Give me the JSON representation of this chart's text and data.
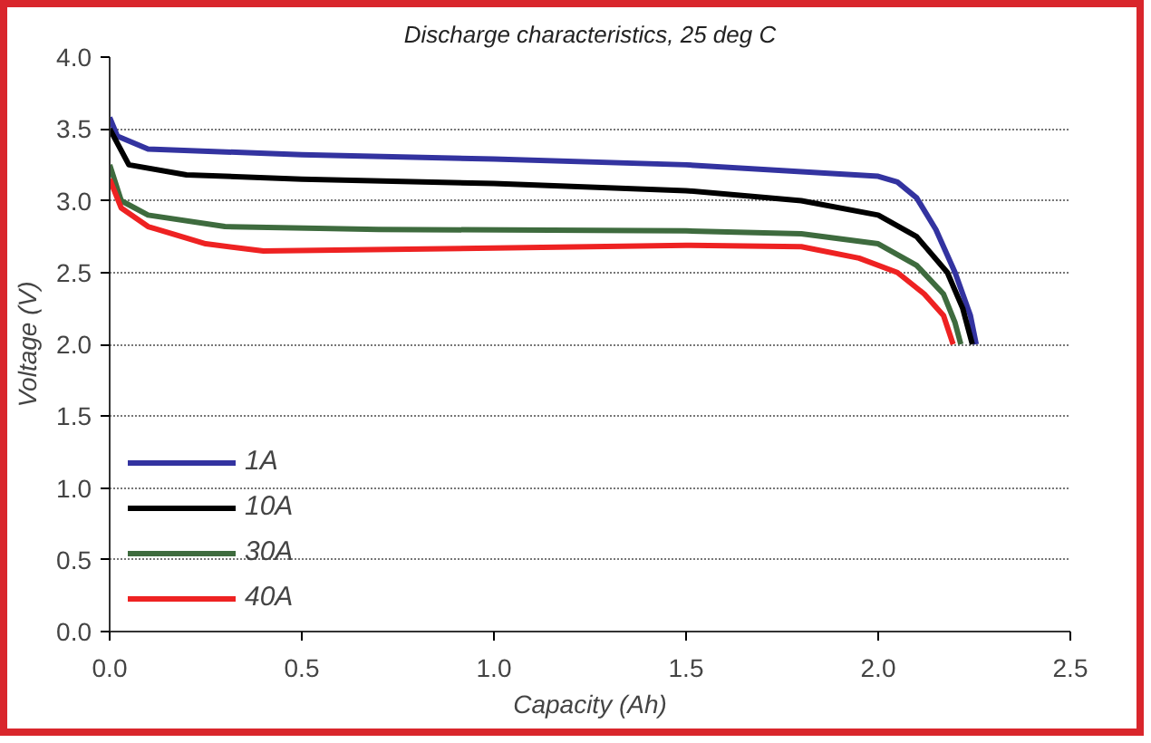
{
  "chart_data": {
    "type": "line",
    "title": "Discharge characteristics, 25 deg C",
    "xlabel": "Capacity (Ah)",
    "ylabel": "Voltage (V)",
    "xlim": [
      0,
      2.5
    ],
    "xticks": [
      {
        "value": 0,
        "label": "0.0"
      },
      0.5,
      {
        "value": 1,
        "label": "1.0"
      },
      1.5,
      {
        "value": 2,
        "label": "2.0"
      },
      2.5
    ],
    "ylim": [
      0,
      4
    ],
    "yticks": [
      {
        "value": 0,
        "label": "0.0"
      },
      0.5,
      {
        "value": 1,
        "label": "1.0"
      },
      1.5,
      {
        "value": 2,
        "label": "2.0"
      },
      2.5,
      {
        "value": 3,
        "label": "3.0"
      },
      3.5,
      {
        "value": 4,
        "label": "4.0"
      }
    ],
    "grid": "y",
    "legend": "bottom left",
    "marker": "none",
    "line_style": "solid",
    "series": [
      {
        "name": "1A",
        "color": "#3333a0",
        "x": [
          0,
          0.02,
          0.1,
          0.5,
          1.0,
          1.5,
          2.0,
          2.05,
          2.1,
          2.15,
          2.2,
          2.24,
          2.255
        ],
        "values": [
          3.58,
          3.45,
          3.36,
          3.32,
          3.29,
          3.25,
          3.17,
          3.13,
          3.02,
          2.8,
          2.5,
          2.2,
          2.0
        ]
      },
      {
        "name": "10A",
        "color": "#000000",
        "x": [
          0,
          0.05,
          0.2,
          0.5,
          1.0,
          1.5,
          1.8,
          2.0,
          2.1,
          2.18,
          2.22,
          2.245
        ],
        "values": [
          3.5,
          3.25,
          3.18,
          3.15,
          3.12,
          3.07,
          3.0,
          2.9,
          2.75,
          2.5,
          2.25,
          2.0
        ]
      },
      {
        "name": "30A",
        "color": "#3e6b3e",
        "x": [
          0,
          0.03,
          0.1,
          0.3,
          0.7,
          1.5,
          1.8,
          2.0,
          2.1,
          2.17,
          2.2,
          2.215
        ],
        "values": [
          3.25,
          3.0,
          2.9,
          2.82,
          2.8,
          2.79,
          2.77,
          2.7,
          2.55,
          2.35,
          2.15,
          2.0
        ]
      },
      {
        "name": "40A",
        "color": "#ee2222",
        "x": [
          0,
          0.03,
          0.1,
          0.25,
          0.4,
          1.0,
          1.5,
          1.8,
          1.95,
          2.05,
          2.12,
          2.17,
          2.195
        ],
        "values": [
          3.15,
          2.95,
          2.82,
          2.7,
          2.65,
          2.67,
          2.69,
          2.68,
          2.6,
          2.5,
          2.35,
          2.2,
          2.0
        ]
      }
    ]
  }
}
